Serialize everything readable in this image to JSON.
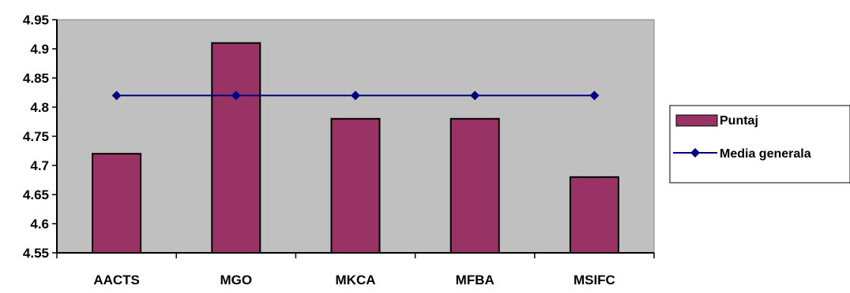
{
  "chart_data": {
    "type": "bar",
    "categories": [
      "AACTS",
      "MGO",
      "MKCA",
      "MFBA",
      "MSIFC"
    ],
    "series": [
      {
        "name": "Puntaj",
        "type": "bar",
        "values": [
          4.72,
          4.91,
          4.78,
          4.78,
          4.68
        ],
        "color": "#993366",
        "edge_color": "#000000"
      },
      {
        "name": "Media generala",
        "type": "line",
        "values": [
          4.82,
          4.82,
          4.82,
          4.82,
          4.82
        ],
        "color": "#000080",
        "marker": "diamond"
      }
    ],
    "title": "",
    "xlabel": "",
    "ylabel": "",
    "ylim": [
      4.55,
      4.95
    ],
    "yticks": [
      "4.55",
      "4.6",
      "4.65",
      "4.7",
      "4.75",
      "4.8",
      "4.85",
      "4.9",
      "4.95"
    ],
    "grid": false,
    "legend_position": "right",
    "plot_background": "#c0c0c0"
  }
}
